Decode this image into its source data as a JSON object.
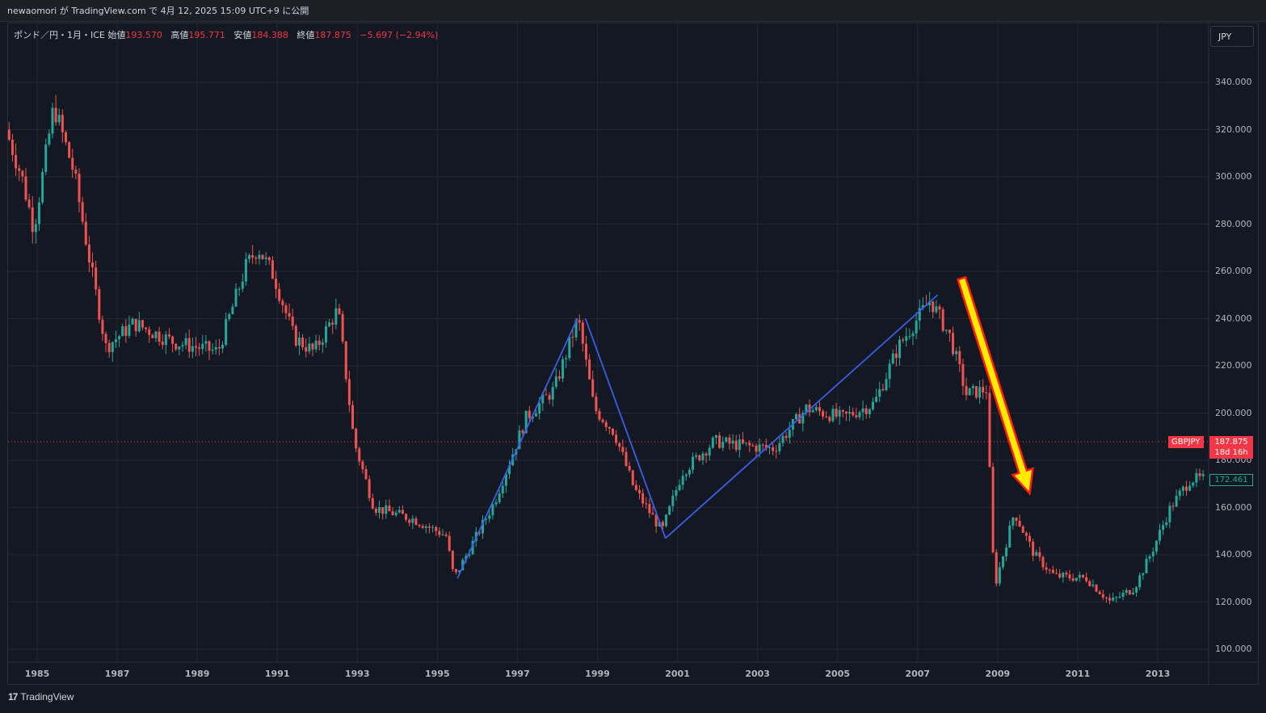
{
  "header": {
    "publish_text": "newaomori が TradingView.com で 4月 12, 2025 15:09 UTC+9 に公開"
  },
  "legend": {
    "symbol_text": "ポンド／円・1月・ICE",
    "open_label": "始値",
    "open_value": "193.570",
    "high_label": "高値",
    "high_value": "195.771",
    "low_label": "安値",
    "low_value": "184.388",
    "close_label": "終値",
    "close_value": "187.875",
    "change": "−5.697 (−2.94%)"
  },
  "currency_button": "JPY",
  "price_badge": {
    "symbol": "GBPJPY",
    "price": "187.875",
    "countdown": "18d 16h",
    "secondary_price": "172.461"
  },
  "footer": {
    "brand": "TradingView",
    "logo": "17"
  },
  "colors": {
    "up": "#26a69a",
    "down": "#ef5350",
    "trendline": "#3a5fe6",
    "arrow_fill": "#ffeb00",
    "arrow_stroke": "#ff1a1a",
    "badge": "#f23645"
  },
  "chart_data": {
    "type": "candlestick",
    "ylim": [
      96,
      352
    ],
    "xlim": [
      1984.25,
      2014.25
    ],
    "y_ticks": [
      "340.000",
      "320.000",
      "300.000",
      "280.000",
      "260.000",
      "240.000",
      "220.000",
      "200.000",
      "180.000",
      "160.000",
      "140.000",
      "120.000",
      "100.000"
    ],
    "x_ticks": [
      "1985",
      "1987",
      "1989",
      "1991",
      "1993",
      "1995",
      "1997",
      "1999",
      "2001",
      "2003",
      "2005",
      "2007",
      "2009",
      "2011",
      "2013"
    ],
    "last_price": 187.875,
    "anchor_path": [
      [
        1984.3,
        320
      ],
      [
        1984.7,
        300
      ],
      [
        1985.0,
        278
      ],
      [
        1985.5,
        330
      ],
      [
        1986.0,
        302
      ],
      [
        1986.4,
        264
      ],
      [
        1986.8,
        228
      ],
      [
        1987.5,
        238
      ],
      [
        1988.5,
        230
      ],
      [
        1989.6,
        226
      ],
      [
        1990.3,
        262
      ],
      [
        1990.6,
        270
      ],
      [
        1991.0,
        258
      ],
      [
        1991.5,
        232
      ],
      [
        1992.0,
        226
      ],
      [
        1992.6,
        244
      ],
      [
        1993.0,
        188
      ],
      [
        1993.5,
        160
      ],
      [
        1994.5,
        155
      ],
      [
        1995.3,
        148
      ],
      [
        1995.5,
        130
      ],
      [
        1996.5,
        162
      ],
      [
        1997.3,
        198
      ],
      [
        1998.0,
        210
      ],
      [
        1998.6,
        240
      ],
      [
        1999.0,
        202
      ],
      [
        1999.5,
        192
      ],
      [
        2000.0,
        168
      ],
      [
        2000.7,
        150
      ],
      [
        2001.2,
        175
      ],
      [
        2002.0,
        188
      ],
      [
        2002.8,
        186
      ],
      [
        2003.5,
        185
      ],
      [
        2004.3,
        202
      ],
      [
        2005.2,
        198
      ],
      [
        2006.0,
        204
      ],
      [
        2006.6,
        228
      ],
      [
        2007.4,
        248
      ],
      [
        2007.9,
        232
      ],
      [
        2008.3,
        208
      ],
      [
        2008.8,
        210
      ],
      [
        2009.0,
        126
      ],
      [
        2009.5,
        158
      ],
      [
        2010.0,
        140
      ],
      [
        2010.5,
        131
      ],
      [
        2011.3,
        130
      ],
      [
        2011.9,
        120
      ],
      [
        2012.5,
        126
      ],
      [
        2012.9,
        140
      ],
      [
        2013.4,
        160
      ],
      [
        2013.9,
        172
      ],
      [
        2014.2,
        172
      ]
    ],
    "trendlines": [
      [
        [
          1995.5,
          130
        ],
        [
          1998.5,
          240
        ]
      ],
      [
        [
          1998.7,
          240
        ],
        [
          2000.7,
          147
        ]
      ],
      [
        [
          2000.7,
          147
        ],
        [
          2007.5,
          250
        ]
      ]
    ],
    "arrow": {
      "from": [
        2008.1,
        257
      ],
      "to": [
        2009.8,
        166
      ]
    }
  }
}
